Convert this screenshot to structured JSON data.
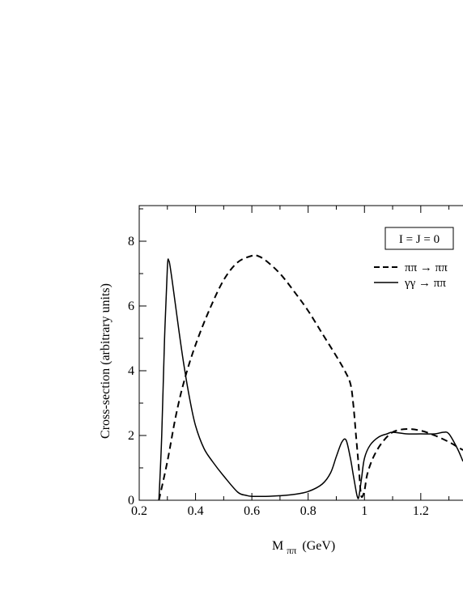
{
  "chart_data": {
    "type": "line",
    "title": "",
    "xlabel": "M",
    "xlabel_sub": "ππ",
    "xlabel_unit": "(GeV)",
    "ylabel": "Cross-section (arbitrary units)",
    "xlim": [
      0.2,
      1.35
    ],
    "ylim": [
      0,
      9.1
    ],
    "x_ticks": [
      0.2,
      0.4,
      0.6,
      0.8,
      1,
      1.2
    ],
    "x_tick_labels": [
      "0.2",
      "0.4",
      "0.6",
      "0.8",
      "1",
      "1.2"
    ],
    "y_ticks": [
      0,
      2,
      4,
      6,
      8
    ],
    "y_tick_labels": [
      "0",
      "2",
      "4",
      "6",
      "8"
    ],
    "grid": false,
    "legend_box_label": "I = J = 0",
    "legend_placement": "top-right",
    "series": [
      {
        "name": "ππ → ππ",
        "style": "dashed",
        "color": "#000000",
        "x": [
          0.27,
          0.3,
          0.33,
          0.36,
          0.4,
          0.45,
          0.5,
          0.55,
          0.6,
          0.62,
          0.65,
          0.7,
          0.75,
          0.8,
          0.85,
          0.9,
          0.93,
          0.95,
          0.96,
          0.97,
          0.98,
          0.985,
          0.99,
          1.0,
          1.01,
          1.03,
          1.06,
          1.1,
          1.15,
          1.2,
          1.25,
          1.3,
          1.33,
          1.35
        ],
        "y": [
          0.0,
          1.2,
          2.6,
          3.7,
          4.8,
          5.9,
          6.8,
          7.35,
          7.55,
          7.55,
          7.4,
          7.0,
          6.45,
          5.85,
          5.15,
          4.45,
          4.0,
          3.6,
          3.0,
          2.0,
          1.0,
          0.4,
          0.1,
          0.3,
          0.8,
          1.3,
          1.75,
          2.1,
          2.2,
          2.15,
          2.0,
          1.8,
          1.65,
          1.55
        ]
      },
      {
        "name": "γγ → ππ",
        "style": "solid",
        "color": "#000000",
        "x": [
          0.27,
          0.28,
          0.29,
          0.3,
          0.305,
          0.31,
          0.32,
          0.34,
          0.36,
          0.38,
          0.4,
          0.43,
          0.46,
          0.5,
          0.55,
          0.58,
          0.6,
          0.65,
          0.7,
          0.75,
          0.8,
          0.85,
          0.88,
          0.9,
          0.92,
          0.935,
          0.95,
          0.96,
          0.97,
          0.975,
          0.98,
          0.99,
          1.0,
          1.02,
          1.05,
          1.08,
          1.1,
          1.15,
          1.2,
          1.25,
          1.28,
          1.3,
          1.33,
          1.35
        ],
        "y": [
          0.0,
          2.0,
          5.0,
          7.2,
          7.4,
          7.2,
          6.6,
          5.3,
          4.1,
          3.1,
          2.3,
          1.6,
          1.2,
          0.75,
          0.25,
          0.15,
          0.12,
          0.12,
          0.14,
          0.18,
          0.27,
          0.5,
          0.85,
          1.35,
          1.8,
          1.85,
          1.3,
          0.8,
          0.3,
          0.1,
          0.1,
          0.7,
          1.3,
          1.7,
          1.95,
          2.05,
          2.1,
          2.05,
          2.05,
          2.05,
          2.1,
          2.05,
          1.6,
          1.2
        ]
      }
    ]
  }
}
